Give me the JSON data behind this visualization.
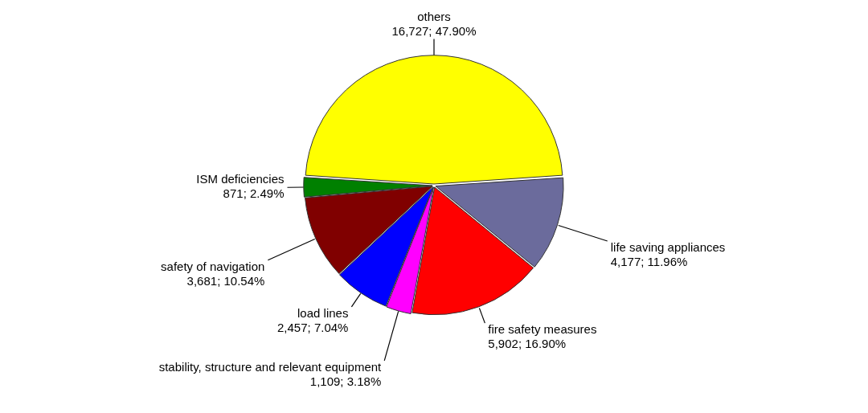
{
  "chart_data": {
    "type": "pie",
    "categories": [
      "others",
      "life saving appliances",
      "fire safety measures",
      "stability, structure and relevant equipment",
      "load lines",
      "safety of navigation",
      "ISM deficiencies"
    ],
    "values": [
      16727,
      4177,
      5902,
      1109,
      2457,
      3681,
      871
    ],
    "value_labels": [
      "16,727; 47.90%",
      "4,177; 11.96%",
      "5,902; 16.90%",
      "1,109; 3.18%",
      "2,457; 7.04%",
      "3,681; 10.54%",
      "871; 2.49%"
    ],
    "colors": [
      "#ffff00",
      "#6b6b9c",
      "#ff0000",
      "#ff00ff",
      "#0000ff",
      "#800000",
      "#008000"
    ],
    "legend": false
  }
}
